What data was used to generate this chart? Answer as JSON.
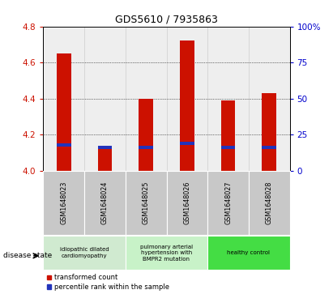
{
  "title": "GDS5610 / 7935863",
  "samples": [
    "GSM1648023",
    "GSM1648024",
    "GSM1648025",
    "GSM1648026",
    "GSM1648027",
    "GSM1648028"
  ],
  "red_values": [
    4.65,
    4.13,
    4.4,
    4.72,
    4.39,
    4.43
  ],
  "blue_values": [
    4.14,
    4.13,
    4.13,
    4.15,
    4.13,
    4.13
  ],
  "y_min": 4.0,
  "y_max": 4.8,
  "y_ticks": [
    4.0,
    4.2,
    4.4,
    4.6,
    4.8
  ],
  "y2_ticks": [
    0,
    25,
    50,
    75,
    100
  ],
  "y2_tick_labels": [
    "0",
    "25",
    "50",
    "75",
    "100%"
  ],
  "bar_color": "#cc1100",
  "blue_color": "#2233bb",
  "bar_width": 0.35,
  "sample_bg_color": "#c8c8c8",
  "disease_colors": [
    "#d0ead0",
    "#c8f2c8",
    "#44dd44"
  ],
  "disease_labels": [
    {
      "label": "idiopathic dilated\ncardiomyopathy",
      "span": [
        0,
        2
      ]
    },
    {
      "label": "pulmonary arterial\nhypertension with\nBMPR2 mutation",
      "span": [
        2,
        4
      ]
    },
    {
      "label": "healthy control",
      "span": [
        4,
        6
      ]
    }
  ],
  "legend_red": "transformed count",
  "legend_blue": "percentile rank within the sample",
  "disease_state_label": "disease state",
  "tick_color_left": "#cc1100",
  "tick_color_right": "#0000cc"
}
